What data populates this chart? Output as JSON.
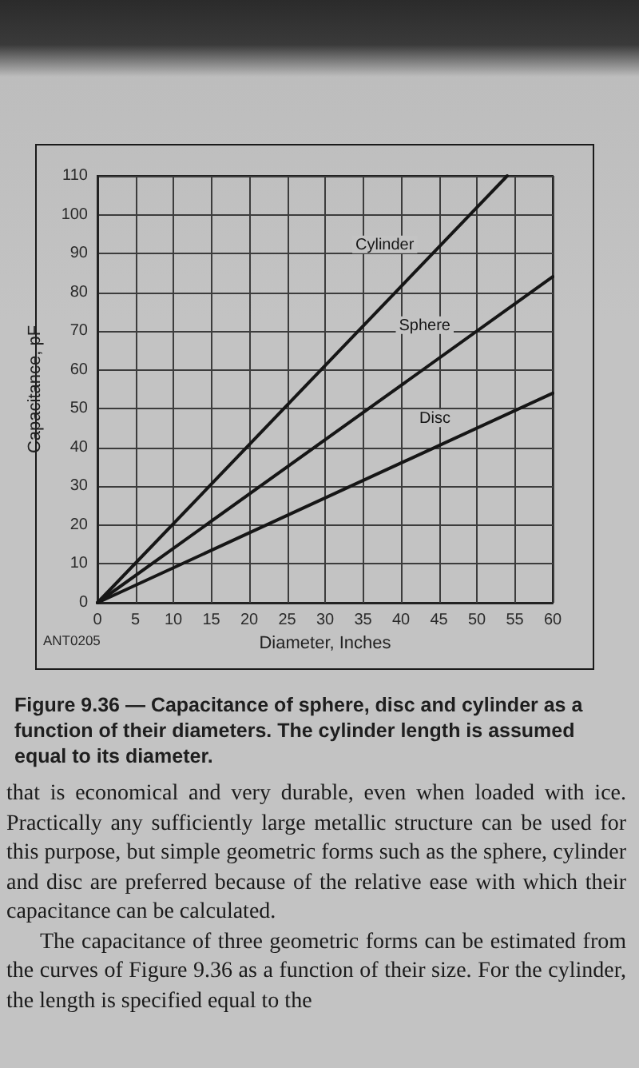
{
  "chart_data": {
    "type": "line",
    "title": "Figure 9.36 — Capacitance of sphere, disc and cylinder as a function of their diameters. The cylinder length is assumed equal to its diameter.",
    "xlabel": "Diameter, Inches",
    "ylabel": "Capacitance, pF",
    "annotations": [
      "ANT0205",
      "that is economical and very durable, even when loaded with ice. Practically any sufficiently large metallic structure can be used for this purpose, but simple geometric forms such as the sphere, cylinder and disc are preferred because of the relative ease with which their capacitance can be calculated.",
      "The capacitance of three geometric forms can be estimated from the curves of Figure 9.36 as a function of their size. For the cylinder, the length is specified equal to the"
    ],
    "series": [
      {
        "name": "Cylinder",
        "color": "#161616",
        "x": [
          0,
          54
        ],
        "values": [
          0,
          110
        ]
      },
      {
        "name": "Sphere",
        "color": "#161616",
        "x": [
          0,
          60
        ],
        "values": [
          0,
          84
        ]
      },
      {
        "name": "Disc",
        "color": "#161616",
        "x": [
          0,
          60
        ],
        "values": [
          0,
          54
        ]
      }
    ],
    "xlim": [
      0,
      60
    ],
    "ylim": [
      0,
      110
    ],
    "xticks": [
      0,
      5,
      10,
      15,
      20,
      25,
      30,
      35,
      40,
      45,
      50,
      55,
      60
    ],
    "yticks": [
      0,
      10,
      20,
      30,
      40,
      50,
      60,
      70,
      80,
      90,
      100,
      110
    ],
    "grid": true,
    "marker": "none",
    "line_style": "solid"
  }
}
